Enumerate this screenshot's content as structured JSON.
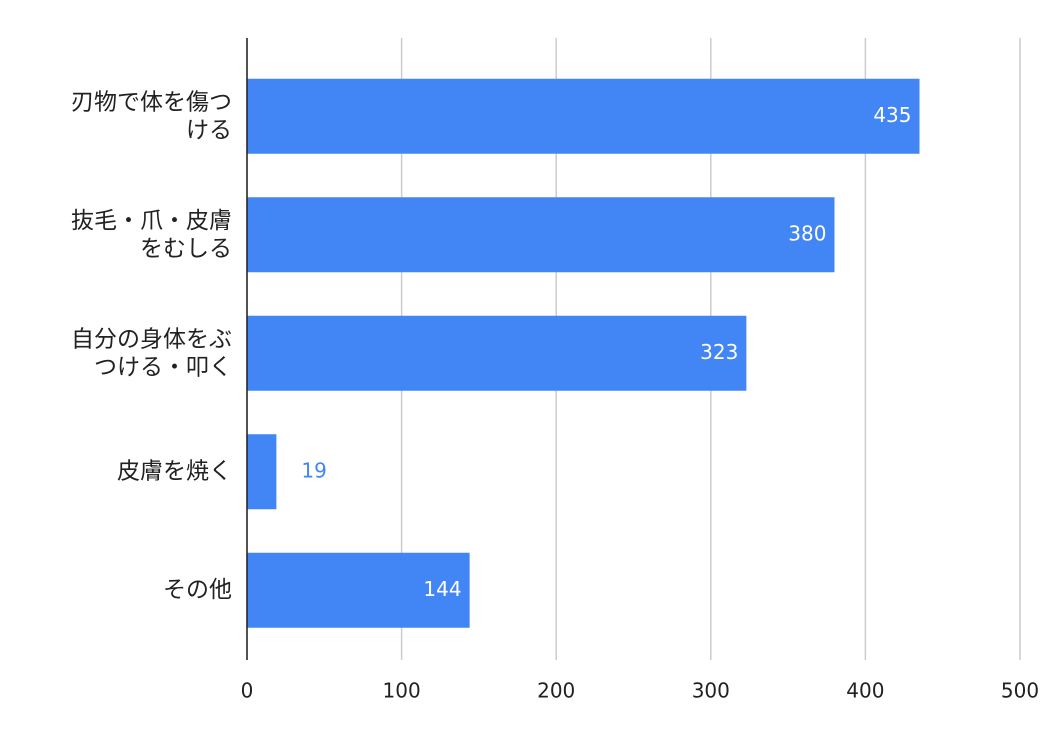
{
  "chart_data": {
    "type": "bar",
    "orientation": "horizontal",
    "categories": [
      "刃物で体を傷つける",
      "抜毛・爪・皮膚をむしる",
      "自分の身体をぶつける・叩く",
      "皮膚を焼く",
      "その他"
    ],
    "values": [
      435,
      380,
      323,
      19,
      144
    ],
    "color": "#4285f4",
    "xlim": [
      0,
      500
    ],
    "xticks": [
      0,
      100,
      200,
      300,
      400,
      500
    ],
    "grid": true
  }
}
